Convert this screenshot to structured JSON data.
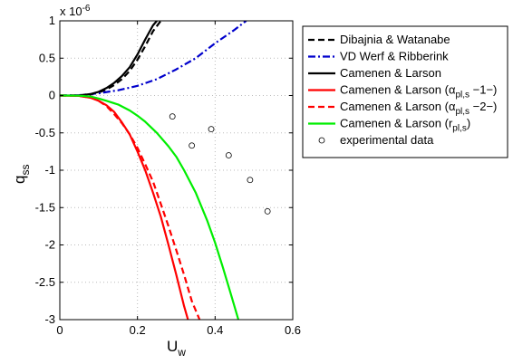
{
  "chart_data": {
    "type": "line",
    "xlabel": {
      "main": "U",
      "sub": "w"
    },
    "ylabel": {
      "main": "q",
      "sub": "ss"
    },
    "y_exponent_label": "x 10",
    "y_exponent": "-6",
    "xlim": [
      0,
      0.6
    ],
    "ylim": [
      -3,
      1
    ],
    "xticks": [
      0,
      0.2,
      0.4,
      0.6
    ],
    "xtick_labels": [
      "0",
      "0.2",
      "0.4",
      "0.6"
    ],
    "yticks": [
      -3,
      -2.5,
      -2,
      -1.5,
      -1,
      -0.5,
      0,
      0.5,
      1
    ],
    "ytick_labels": [
      "-3",
      "-2.5",
      "-2",
      "-1.5",
      "-1",
      "-0.5",
      "0",
      "0.5",
      "1"
    ],
    "grid": true,
    "legend_position": "outside-right",
    "series": [
      {
        "name": "Dibajnia & Watanabe",
        "color": "#000000",
        "dash": "dashed",
        "x": [
          0,
          0.05,
          0.08,
          0.1,
          0.12,
          0.14,
          0.16,
          0.18,
          0.2,
          0.22,
          0.24,
          0.26
        ],
        "y": [
          0,
          0.002,
          0.015,
          0.04,
          0.08,
          0.14,
          0.22,
          0.33,
          0.48,
          0.66,
          0.86,
          1.0
        ]
      },
      {
        "name": "VD Werf & Ribberink",
        "color": "#0000cc",
        "dash": "dashdot",
        "x": [
          0,
          0.05,
          0.1,
          0.15,
          0.2,
          0.25,
          0.3,
          0.35,
          0.4,
          0.45,
          0.48
        ],
        "y": [
          0,
          0.005,
          0.03,
          0.07,
          0.13,
          0.22,
          0.35,
          0.5,
          0.7,
          0.88,
          1.0
        ]
      },
      {
        "name": "Camenen & Larson",
        "color": "#000000",
        "dash": "solid",
        "x": [
          0,
          0.05,
          0.08,
          0.1,
          0.12,
          0.14,
          0.16,
          0.18,
          0.2,
          0.22,
          0.24,
          0.25
        ],
        "y": [
          0,
          0.003,
          0.02,
          0.05,
          0.1,
          0.17,
          0.26,
          0.38,
          0.55,
          0.75,
          0.94,
          1.0
        ]
      },
      {
        "name": "Camenen & Larson (α",
        "name_sub": "pl,s",
        "name_tail": " −1−)",
        "color": "#ff0000",
        "dash": "solid",
        "x": [
          0,
          0.05,
          0.08,
          0.1,
          0.12,
          0.14,
          0.16,
          0.18,
          0.2,
          0.22,
          0.24,
          0.26,
          0.28,
          0.3,
          0.32,
          0.33
        ],
        "y": [
          0,
          -0.005,
          -0.03,
          -0.07,
          -0.13,
          -0.22,
          -0.36,
          -0.52,
          -0.75,
          -1.0,
          -1.3,
          -1.62,
          -2.0,
          -2.4,
          -2.82,
          -3.0
        ]
      },
      {
        "name": "Camenen & Larson (α",
        "name_sub": "pl,s",
        "name_tail": " −2−)",
        "color": "#ff0000",
        "dash": "dashed",
        "x": [
          0,
          0.05,
          0.08,
          0.1,
          0.12,
          0.14,
          0.16,
          0.18,
          0.2,
          0.22,
          0.24,
          0.26,
          0.28,
          0.3,
          0.32,
          0.34,
          0.36
        ],
        "y": [
          0,
          -0.005,
          -0.03,
          -0.07,
          -0.14,
          -0.25,
          -0.37,
          -0.52,
          -0.7,
          -0.92,
          -1.15,
          -1.45,
          -1.75,
          -2.07,
          -2.4,
          -2.75,
          -3.0
        ]
      },
      {
        "name": "Camenen & Larson (r",
        "name_sub": "pl,s",
        "name_tail": ")",
        "color": "#00ee00",
        "dash": "solid",
        "x": [
          0,
          0.05,
          0.08,
          0.1,
          0.12,
          0.15,
          0.18,
          0.2,
          0.22,
          0.25,
          0.28,
          0.3,
          0.32,
          0.35,
          0.38,
          0.4,
          0.42,
          0.44,
          0.46
        ],
        "y": [
          0,
          -0.003,
          -0.015,
          -0.04,
          -0.07,
          -0.12,
          -0.2,
          -0.27,
          -0.35,
          -0.5,
          -0.68,
          -0.82,
          -1.0,
          -1.3,
          -1.68,
          -1.97,
          -2.3,
          -2.65,
          -3.0
        ]
      }
    ],
    "scatter": {
      "name": "experimental data",
      "x": [
        0.29,
        0.34,
        0.39,
        0.435,
        0.49,
        0.535
      ],
      "y": [
        -0.28,
        -0.67,
        -0.45,
        -0.8,
        -1.13,
        -1.55
      ]
    }
  }
}
